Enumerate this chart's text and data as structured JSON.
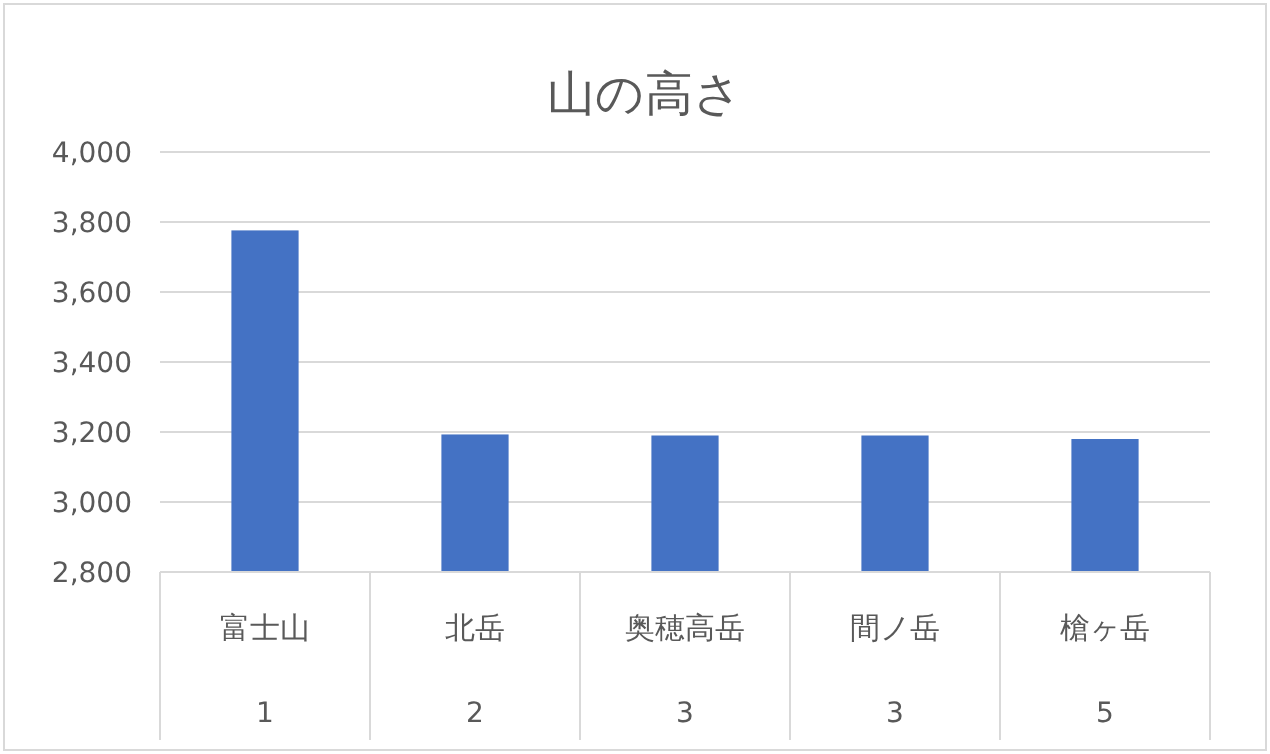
{
  "chart_data": {
    "type": "bar",
    "title": "山の高さ",
    "categories": [
      "富士山",
      "北岳",
      "奥穂高岳",
      "間ノ岳",
      "槍ヶ岳"
    ],
    "values": [
      3776,
      3193,
      3190,
      3190,
      3180
    ],
    "color": "#4472c4",
    "ylim": [
      2800,
      4000
    ],
    "yticks": [
      {
        "value": 2800,
        "label": "2,800"
      },
      {
        "value": 3000,
        "label": "3,000"
      },
      {
        "value": 3200,
        "label": "3,200"
      },
      {
        "value": 3400,
        "label": "3,400"
      },
      {
        "value": 3600,
        "label": "3,600"
      },
      {
        "value": 3800,
        "label": "3,800"
      },
      {
        "value": 4000,
        "label": "4,000"
      }
    ],
    "grid": "y",
    "annotations": [
      "1",
      "2",
      "3",
      "3",
      "5"
    ]
  }
}
